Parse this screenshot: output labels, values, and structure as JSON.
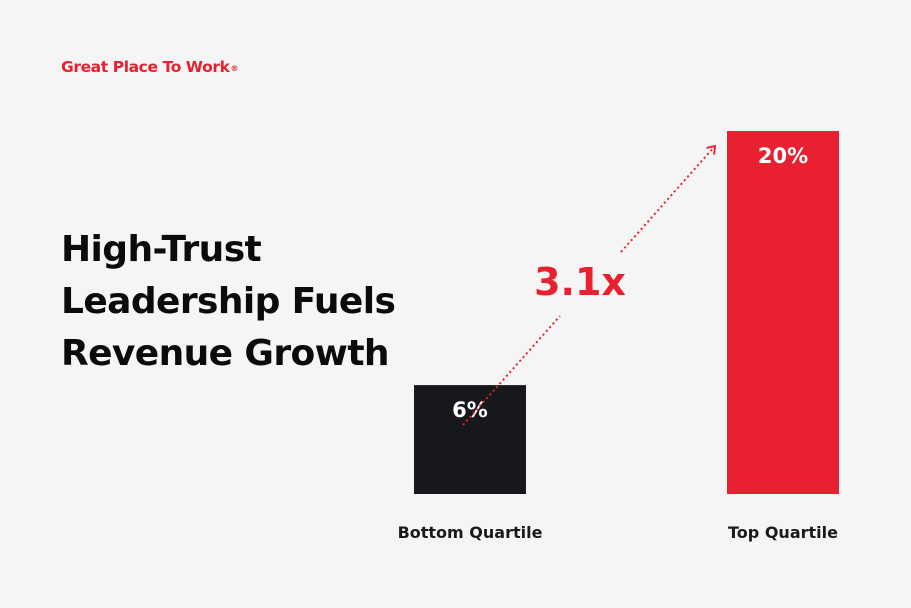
{
  "brand": {
    "name": "Great Place To Work",
    "registered_mark": "®"
  },
  "headline": {
    "lines": [
      "High-Trust",
      "Leadership Fuels",
      "Revenue Growth"
    ]
  },
  "colors": {
    "accent": "#e8202f",
    "dark": "#17181c",
    "background": "#f5f5f5"
  },
  "chart_data": {
    "type": "bar",
    "title": "",
    "xlabel": "",
    "ylabel": "",
    "categories": [
      "Bottom Quartile",
      "Top Quartile"
    ],
    "values": [
      6,
      20
    ],
    "value_labels": [
      "6%",
      "20%"
    ],
    "bar_colors": [
      "#17181c",
      "#e8202f"
    ],
    "ylim": [
      0,
      20
    ],
    "grid": false,
    "annotation": {
      "text": "3.1x",
      "style": "dotted-arrow",
      "from": "Bottom Quartile",
      "to": "Top Quartile"
    }
  }
}
